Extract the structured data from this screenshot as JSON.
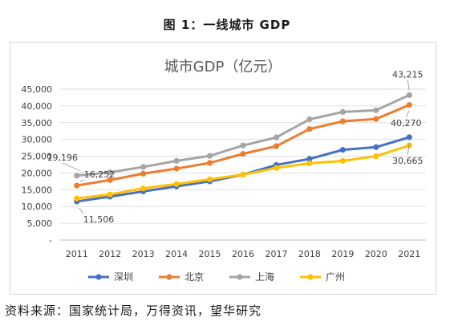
{
  "figure_title": "图 1：一线城市 GDP",
  "source_text": "资料来源：国家统计局，万得资讯，望华研究",
  "chart_data": {
    "type": "line",
    "title": "城市GDP（亿元）",
    "xlabel": "",
    "ylabel": "",
    "ylim": [
      0,
      45000
    ],
    "y_ticks": [
      0,
      5000,
      10000,
      15000,
      20000,
      25000,
      30000,
      35000,
      40000,
      45000
    ],
    "y_tick_labels": [
      "-",
      "5,000",
      "10,000",
      "15,000",
      "20,000",
      "25,000",
      "30,000",
      "35,000",
      "40,000",
      "45,000"
    ],
    "categories": [
      "2011",
      "2012",
      "2013",
      "2014",
      "2015",
      "2016",
      "2017",
      "2018",
      "2019",
      "2020",
      "2021"
    ],
    "grid": true,
    "legend_position": "bottom",
    "series": [
      {
        "name": "深圳",
        "color": "#4472C4",
        "values": [
          11506,
          12950,
          14500,
          16000,
          17500,
          19490,
          22400,
          24200,
          26900,
          27700,
          30665
        ]
      },
      {
        "name": "北京",
        "color": "#ED7D31",
        "values": [
          16252,
          17900,
          19800,
          21300,
          23000,
          25700,
          28000,
          33100,
          35400,
          36100,
          40270
        ]
      },
      {
        "name": "上海",
        "color": "#A5A5A5",
        "values": [
          19196,
          20200,
          21800,
          23600,
          25100,
          28200,
          30600,
          36000,
          38200,
          38700,
          43215
        ]
      },
      {
        "name": "广州",
        "color": "#FFC000",
        "values": [
          12400,
          13600,
          15400,
          16700,
          18100,
          19500,
          21500,
          22900,
          23600,
          25000,
          28200
        ]
      }
    ],
    "data_labels": [
      {
        "series": 0,
        "index": 0,
        "text": "11,506"
      },
      {
        "series": 1,
        "index": 0,
        "text": "16,252"
      },
      {
        "series": 2,
        "index": 0,
        "text": "19,196"
      },
      {
        "series": 2,
        "index": 10,
        "text": "43,215"
      },
      {
        "series": 1,
        "index": 10,
        "text": "40,270"
      },
      {
        "series": 0,
        "index": 10,
        "text": "30,665"
      }
    ]
  }
}
